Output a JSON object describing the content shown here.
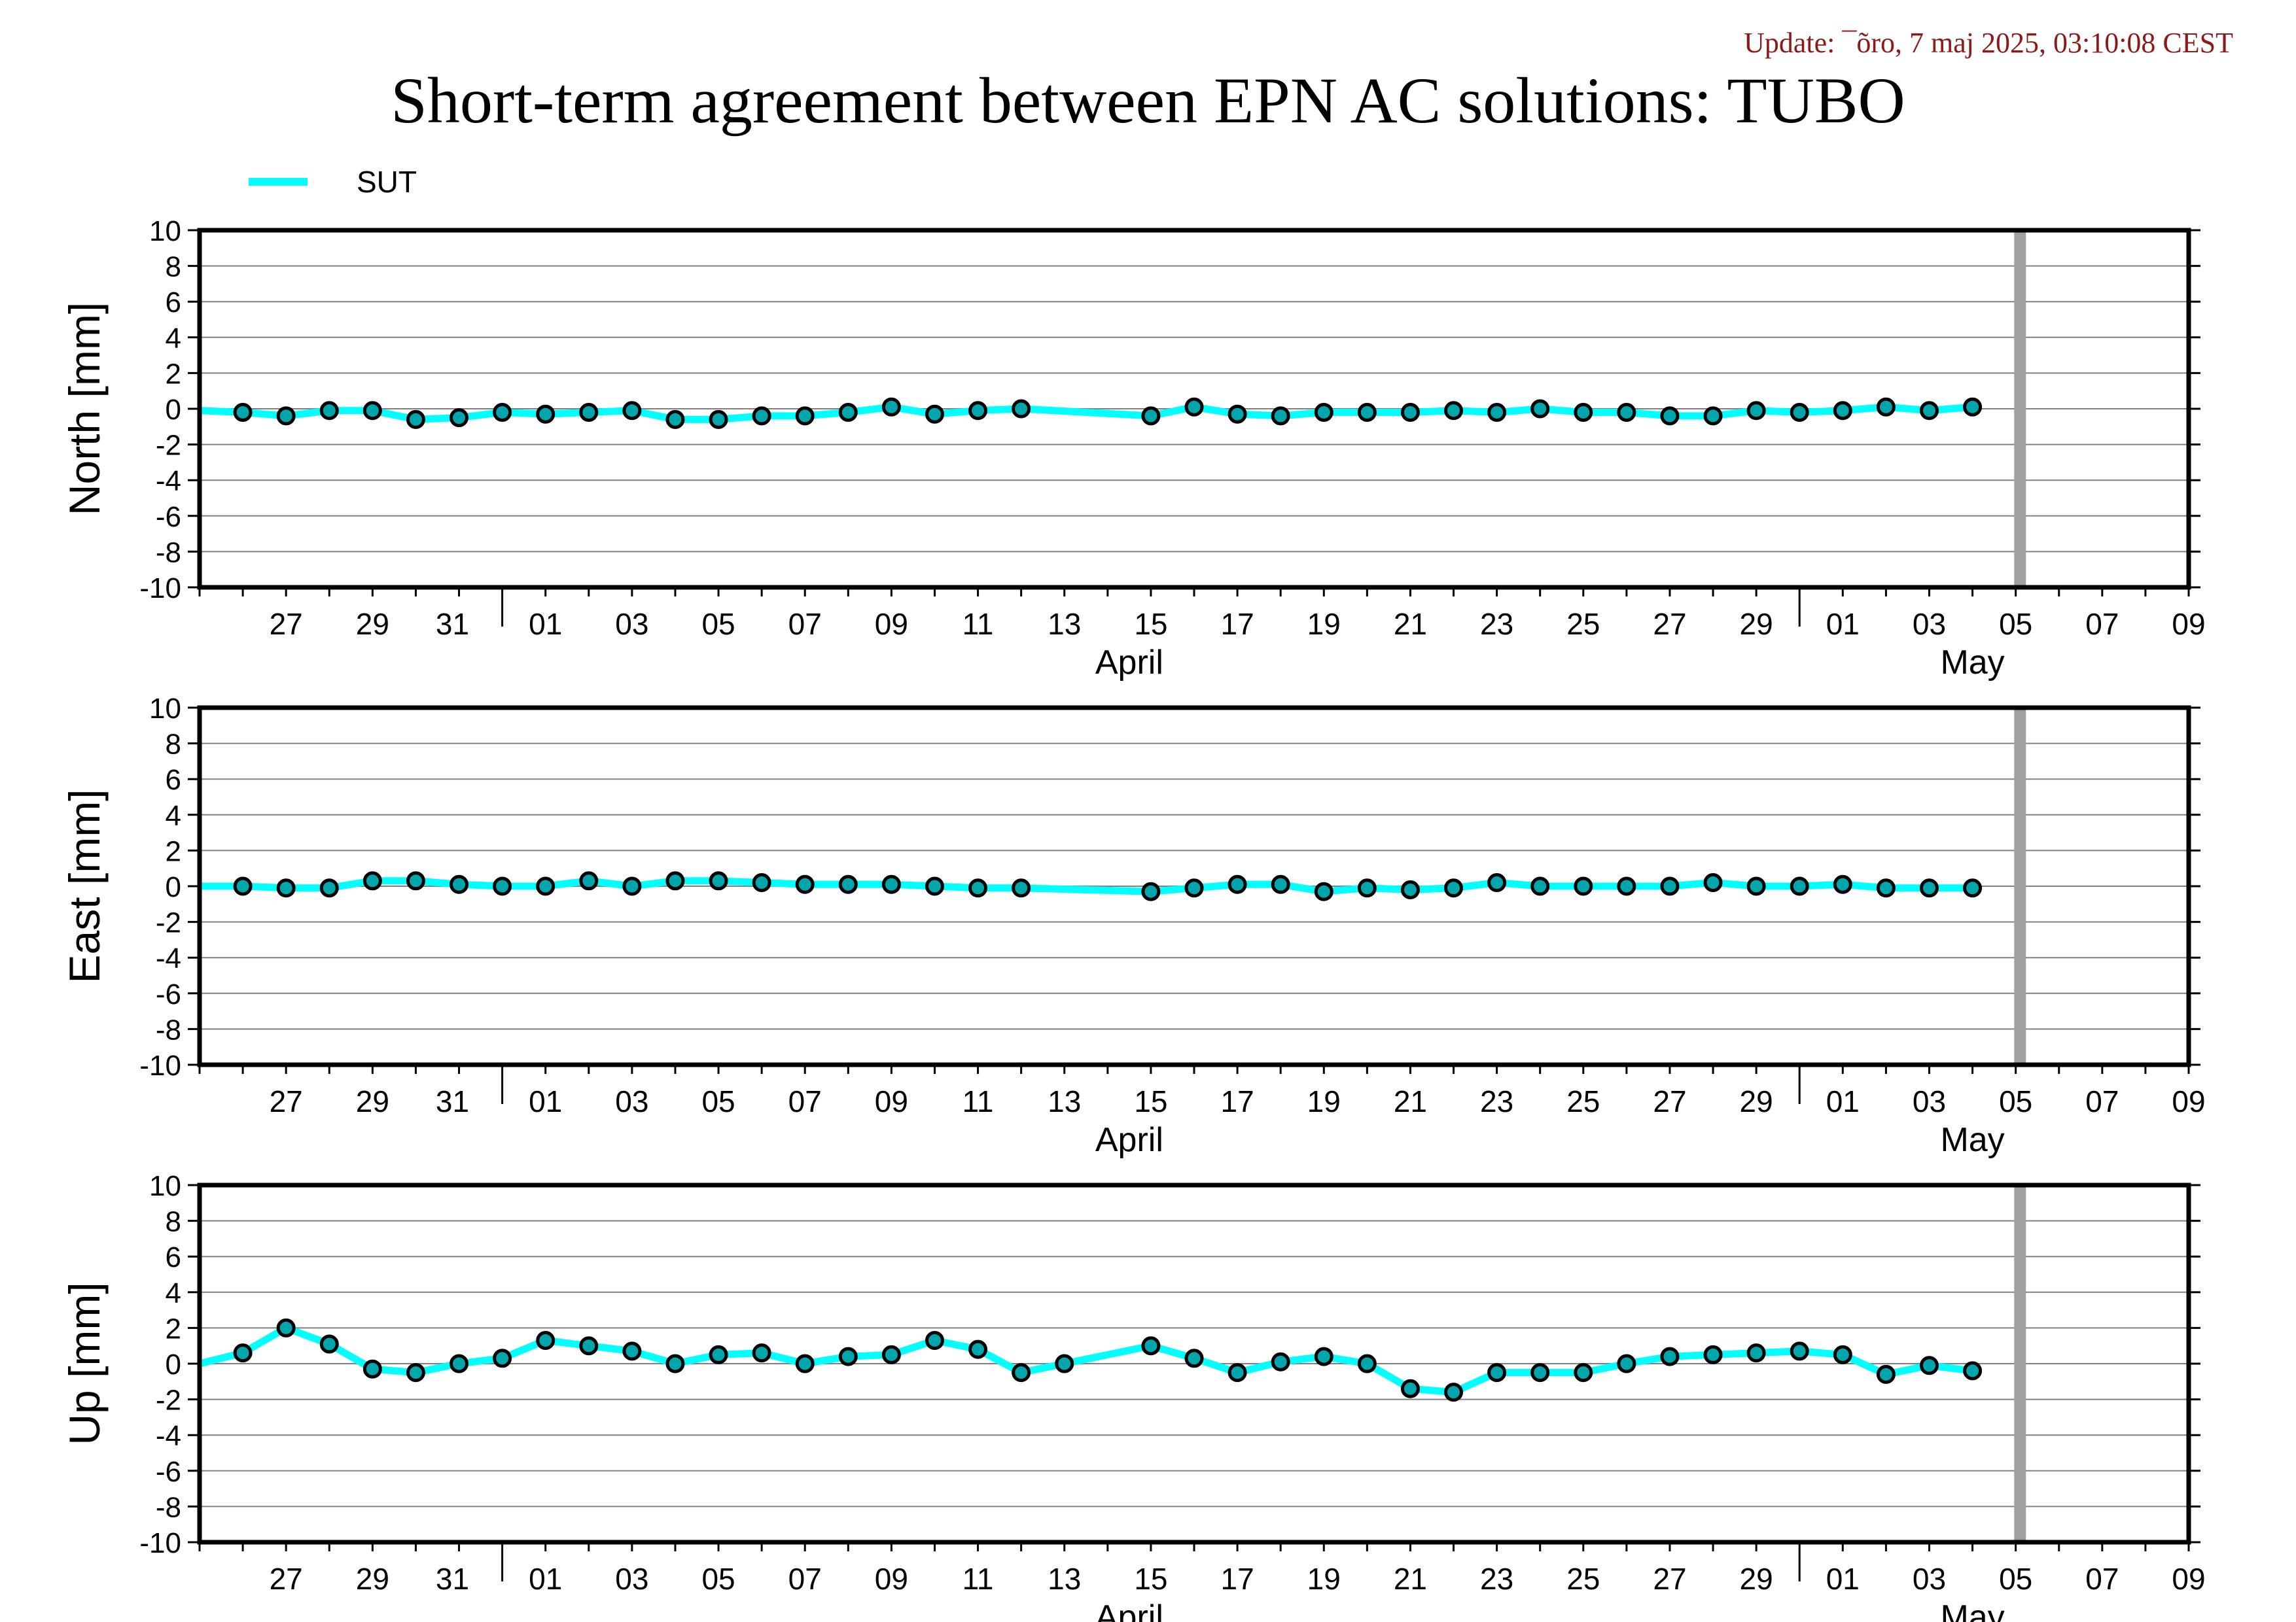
{
  "page": {
    "update": "Update: ¯õro, 7 maj 2025, 03:10:08 CEST",
    "title": "Short-term agreement between EPN AC solutions: TUBO"
  },
  "colors": {
    "series": "#00ffff",
    "marker_fill": "#00a6ac",
    "update_text": "#8b1a1a",
    "marker_line": "#000000",
    "grid": "#808080",
    "gray_bar": "#a0a0a0"
  },
  "chart_data": [
    {
      "type": "line",
      "ylabel": "North [mm]",
      "ylim": [
        -10,
        10
      ],
      "yticks": [
        10,
        8,
        6,
        4,
        2,
        0,
        -2,
        -4,
        -6,
        -8,
        -10
      ],
      "grid": true,
      "legend": "top-left",
      "x_start": "2025-03-25",
      "x_end": "2025-05-10",
      "x_tick_labels": [
        "27",
        "29",
        "31",
        "01",
        "03",
        "05",
        "07",
        "09",
        "11",
        "13",
        "15",
        "17",
        "19",
        "21",
        "23",
        "25",
        "27",
        "29",
        "01",
        "03",
        "05",
        "07",
        "09"
      ],
      "month_labels": [
        "April",
        "May"
      ],
      "marker_line": "2025-05-06",
      "series": [
        {
          "name": "SUT",
          "x": [
            "2025-03-25",
            "2025-03-26",
            "2025-03-27",
            "2025-03-28",
            "2025-03-29",
            "2025-03-30",
            "2025-03-31",
            "2025-04-01",
            "2025-04-02",
            "2025-04-03",
            "2025-04-04",
            "2025-04-05",
            "2025-04-06",
            "2025-04-07",
            "2025-04-08",
            "2025-04-09",
            "2025-04-10",
            "2025-04-11",
            "2025-04-12",
            "2025-04-13",
            "2025-04-16",
            "2025-04-17",
            "2025-04-18",
            "2025-04-19",
            "2025-04-20",
            "2025-04-21",
            "2025-04-22",
            "2025-04-23",
            "2025-04-24",
            "2025-04-25",
            "2025-04-26",
            "2025-04-27",
            "2025-04-28",
            "2025-04-29",
            "2025-04-30",
            "2025-05-01",
            "2025-05-02",
            "2025-05-03",
            "2025-05-04",
            "2025-05-05"
          ],
          "y": [
            -0.1,
            -0.2,
            -0.4,
            -0.1,
            -0.1,
            -0.6,
            -0.5,
            -0.2,
            -0.3,
            -0.2,
            -0.1,
            -0.6,
            -0.6,
            -0.4,
            -0.4,
            -0.2,
            0.1,
            -0.3,
            -0.1,
            0.0,
            -0.4,
            0.1,
            -0.3,
            -0.4,
            -0.2,
            -0.2,
            -0.2,
            -0.1,
            -0.2,
            0.0,
            -0.2,
            -0.2,
            -0.4,
            -0.4,
            -0.1,
            -0.2,
            -0.1,
            0.1,
            -0.1,
            0.1
          ],
          "markers_from": "2025-03-26"
        }
      ]
    },
    {
      "type": "line",
      "ylabel": "East [mm]",
      "ylim": [
        -10,
        10
      ],
      "yticks": [
        10,
        8,
        6,
        4,
        2,
        0,
        -2,
        -4,
        -6,
        -8,
        -10
      ],
      "grid": true,
      "x_start": "2025-03-25",
      "x_end": "2025-05-10",
      "x_tick_labels": [
        "27",
        "29",
        "31",
        "01",
        "03",
        "05",
        "07",
        "09",
        "11",
        "13",
        "15",
        "17",
        "19",
        "21",
        "23",
        "25",
        "27",
        "29",
        "01",
        "03",
        "05",
        "07",
        "09"
      ],
      "month_labels": [
        "April",
        "May"
      ],
      "marker_line": "2025-05-06",
      "series": [
        {
          "name": "SUT",
          "x": [
            "2025-03-25",
            "2025-03-26",
            "2025-03-27",
            "2025-03-28",
            "2025-03-29",
            "2025-03-30",
            "2025-03-31",
            "2025-04-01",
            "2025-04-02",
            "2025-04-03",
            "2025-04-04",
            "2025-04-05",
            "2025-04-06",
            "2025-04-07",
            "2025-04-08",
            "2025-04-09",
            "2025-04-10",
            "2025-04-11",
            "2025-04-12",
            "2025-04-13",
            "2025-04-16",
            "2025-04-17",
            "2025-04-18",
            "2025-04-19",
            "2025-04-20",
            "2025-04-21",
            "2025-04-22",
            "2025-04-23",
            "2025-04-24",
            "2025-04-25",
            "2025-04-26",
            "2025-04-27",
            "2025-04-28",
            "2025-04-29",
            "2025-04-30",
            "2025-05-01",
            "2025-05-02",
            "2025-05-03",
            "2025-05-04",
            "2025-05-05"
          ],
          "y": [
            0.0,
            0.0,
            -0.1,
            -0.1,
            0.3,
            0.3,
            0.1,
            0.0,
            0.0,
            0.3,
            0.0,
            0.3,
            0.3,
            0.2,
            0.1,
            0.1,
            0.1,
            0.0,
            -0.1,
            -0.1,
            -0.3,
            -0.1,
            0.1,
            0.1,
            -0.3,
            -0.1,
            -0.2,
            -0.1,
            0.2,
            0.0,
            0.0,
            0.0,
            0.0,
            0.2,
            0.0,
            0.0,
            0.1,
            -0.1,
            -0.1,
            -0.1
          ],
          "markers_from": "2025-03-26"
        }
      ]
    },
    {
      "type": "line",
      "ylabel": "Up [mm]",
      "ylim": [
        -10,
        10
      ],
      "yticks": [
        10,
        8,
        6,
        4,
        2,
        0,
        -2,
        -4,
        -6,
        -8,
        -10
      ],
      "grid": true,
      "x_start": "2025-03-25",
      "x_end": "2025-05-10",
      "x_tick_labels": [
        "27",
        "29",
        "31",
        "01",
        "03",
        "05",
        "07",
        "09",
        "11",
        "13",
        "15",
        "17",
        "19",
        "21",
        "23",
        "25",
        "27",
        "29",
        "01",
        "03",
        "05",
        "07",
        "09"
      ],
      "month_labels": [
        "April",
        "May"
      ],
      "marker_line": "2025-05-06",
      "series": [
        {
          "name": "SUT",
          "x": [
            "2025-03-25",
            "2025-03-26",
            "2025-03-27",
            "2025-03-28",
            "2025-03-29",
            "2025-03-30",
            "2025-03-31",
            "2025-04-01",
            "2025-04-02",
            "2025-04-03",
            "2025-04-04",
            "2025-04-05",
            "2025-04-06",
            "2025-04-07",
            "2025-04-08",
            "2025-04-09",
            "2025-04-10",
            "2025-04-11",
            "2025-04-12",
            "2025-04-13",
            "2025-04-14",
            "2025-04-16",
            "2025-04-17",
            "2025-04-18",
            "2025-04-19",
            "2025-04-20",
            "2025-04-21",
            "2025-04-22",
            "2025-04-23",
            "2025-04-24",
            "2025-04-25",
            "2025-04-26",
            "2025-04-27",
            "2025-04-28",
            "2025-04-29",
            "2025-04-30",
            "2025-05-01",
            "2025-05-02",
            "2025-05-03",
            "2025-05-04",
            "2025-05-05"
          ],
          "y": [
            0.0,
            0.6,
            2.0,
            1.1,
            -0.3,
            -0.5,
            0.0,
            0.3,
            1.3,
            1.0,
            0.7,
            0.0,
            0.5,
            0.6,
            0.0,
            0.4,
            0.5,
            1.3,
            0.8,
            -0.5,
            0.0,
            1.0,
            0.3,
            -0.5,
            0.1,
            0.4,
            0.0,
            -1.4,
            -1.6,
            -0.5,
            -0.5,
            -0.5,
            0.0,
            0.4,
            0.5,
            0.6,
            0.7,
            0.5,
            -0.6,
            -0.1,
            -0.4
          ],
          "markers_from": "2025-03-26"
        }
      ]
    }
  ]
}
